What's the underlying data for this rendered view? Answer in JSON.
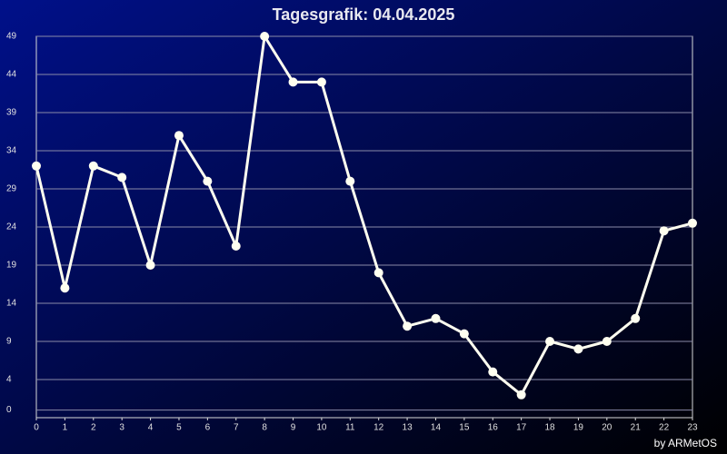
{
  "chart_data": {
    "type": "line",
    "title": "Tagesgrafik: 04.04.2025",
    "credit": "by ARMetOS",
    "x": [
      0,
      1,
      2,
      3,
      4,
      5,
      6,
      7,
      8,
      9,
      10,
      11,
      12,
      13,
      14,
      15,
      16,
      17,
      18,
      19,
      20,
      21,
      22,
      23
    ],
    "series": [
      {
        "name": "Tagesgrafik",
        "color": "#fffff0",
        "values": [
          32,
          16,
          32,
          30.5,
          19,
          36,
          30,
          21.5,
          49,
          43,
          43,
          30,
          18,
          11,
          12,
          10,
          5,
          2,
          9,
          8,
          9,
          12,
          23.5,
          24.5
        ]
      }
    ],
    "xlim": [
      0,
      23
    ],
    "xticks": [
      0,
      1,
      2,
      3,
      4,
      5,
      6,
      7,
      8,
      9,
      10,
      11,
      12,
      13,
      14,
      15,
      16,
      17,
      18,
      19,
      20,
      21,
      22,
      23
    ],
    "ylim": [
      -1,
      49
    ],
    "yticks": [
      0,
      4,
      9,
      14,
      19,
      24,
      29,
      34,
      39,
      44,
      49
    ],
    "grid": true
  }
}
